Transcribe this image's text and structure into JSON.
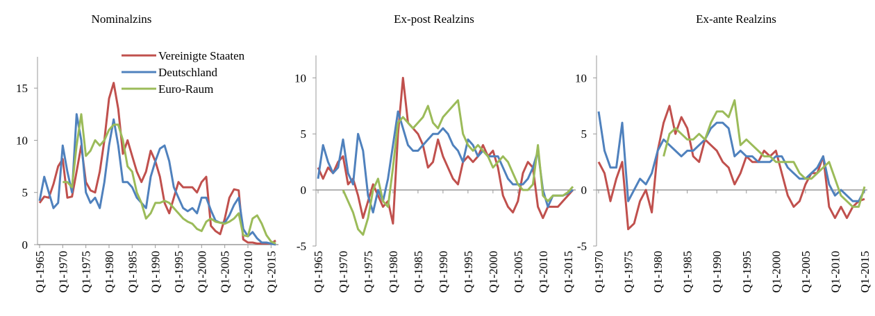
{
  "chart_data": [
    {
      "type": "line",
      "title": "Nominalzins",
      "categories": [
        "Q1-1965",
        null,
        null,
        null,
        null,
        "Q1-1970",
        null,
        null,
        null,
        null,
        "Q1-1975",
        null,
        null,
        null,
        null,
        "Q1-1980",
        null,
        null,
        null,
        null,
        "Q1-1985",
        null,
        null,
        null,
        null,
        "Q1-1990",
        null,
        null,
        null,
        null,
        "Q1-1995",
        null,
        null,
        null,
        null,
        "Q1-2000",
        null,
        null,
        null,
        null,
        "Q1-2005",
        null,
        null,
        null,
        null,
        "Q1-2010",
        null,
        null,
        null,
        null,
        "Q1-2015",
        null
      ],
      "series": [
        {
          "name": "Vereinigte Staaten",
          "color": "#c0504d",
          "values": [
            4.0,
            4.6,
            4.5,
            5.8,
            7.5,
            8.2,
            4.5,
            4.6,
            7.0,
            9.5,
            6.0,
            5.2,
            5.0,
            7.0,
            10.0,
            14.0,
            15.5,
            13.0,
            8.7,
            10.0,
            8.5,
            7.0,
            6.0,
            7.0,
            9.0,
            8.0,
            6.5,
            4.0,
            3.0,
            4.5,
            6.0,
            5.5,
            5.5,
            5.5,
            5.0,
            6.0,
            6.5,
            1.8,
            1.3,
            1.0,
            2.5,
            4.5,
            5.3,
            5.2,
            0.5,
            0.2,
            0.2,
            0.1,
            0.1,
            0.1,
            0.1,
            0.4
          ]
        },
        {
          "name": "Deutschland",
          "color": "#4f81bd",
          "values": [
            4.2,
            6.5,
            5.0,
            3.5,
            4.0,
            9.5,
            7.0,
            5.0,
            12.5,
            10.0,
            5.0,
            4.0,
            4.5,
            3.5,
            6.0,
            9.5,
            12.0,
            9.5,
            6.0,
            6.0,
            5.5,
            4.5,
            4.0,
            3.5,
            6.5,
            8.0,
            9.2,
            9.5,
            8.0,
            5.5,
            4.5,
            3.5,
            3.2,
            3.5,
            3.0,
            4.5,
            4.5,
            3.3,
            2.3,
            2.1,
            2.1,
            2.8,
            3.8,
            4.5,
            1.5,
            0.8,
            1.2,
            0.6,
            0.2,
            0.2,
            0.1,
            0.0
          ]
        },
        {
          "name": "Euro-Raum",
          "color": "#9bbb59",
          "values": [
            null,
            null,
            null,
            null,
            null,
            6.0,
            6.0,
            5.5,
            9.5,
            12.5,
            8.5,
            9.0,
            10.0,
            9.5,
            10.0,
            11.0,
            11.5,
            11.5,
            10.0,
            7.5,
            7.0,
            5.0,
            4.0,
            2.5,
            3.0,
            4.0,
            4.0,
            4.2,
            4.0,
            3.5,
            3.0,
            2.5,
            2.2,
            2.0,
            1.5,
            1.3,
            2.2,
            2.5,
            2.2,
            2.1,
            2.0,
            2.2,
            2.5,
            3.0,
            0.9,
            0.8,
            2.5,
            2.8,
            2.0,
            0.9,
            0.3,
            0.1
          ]
        }
      ],
      "ylim": [
        0,
        18
      ],
      "yticks": [
        0,
        5,
        10,
        15
      ],
      "legend": "upper right"
    },
    {
      "type": "line",
      "title": "Ex-post Realzins",
      "categories": [
        "Q1-1965",
        null,
        null,
        null,
        null,
        "Q1-1970",
        null,
        null,
        null,
        null,
        "Q1-1975",
        null,
        null,
        null,
        null,
        "Q1-1980",
        null,
        null,
        null,
        null,
        "Q1-1985",
        null,
        null,
        null,
        null,
        "Q1-1990",
        null,
        null,
        null,
        null,
        "Q1-1995",
        null,
        null,
        null,
        null,
        "Q1-2000",
        null,
        null,
        null,
        null,
        "Q1-2005",
        null,
        null,
        null,
        null,
        "Q1-2010",
        null,
        null,
        null,
        null,
        "Q1-2015",
        null
      ],
      "series": [
        {
          "name": "Vereinigte Staaten",
          "color": "#c0504d",
          "values": [
            2.0,
            1.0,
            2.0,
            1.5,
            2.5,
            3.0,
            0.5,
            1.0,
            -0.5,
            -2.5,
            -1.0,
            0.5,
            -0.5,
            -1.5,
            -1.0,
            -3.0,
            5.0,
            10.0,
            6.0,
            5.5,
            5.0,
            4.0,
            2.0,
            2.5,
            4.5,
            3.0,
            2.0,
            1.0,
            0.5,
            2.5,
            3.0,
            2.5,
            3.0,
            4.0,
            3.0,
            3.5,
            2.0,
            -0.5,
            -1.5,
            -2.0,
            -1.0,
            1.5,
            2.5,
            2.0,
            -1.5,
            -2.5,
            -1.5,
            -1.5,
            -1.5,
            -1.0,
            -0.5,
            0.0
          ]
        },
        {
          "name": "Deutschland",
          "color": "#4f81bd",
          "values": [
            1.0,
            4.0,
            2.5,
            1.5,
            2.0,
            4.5,
            1.5,
            0.5,
            5.0,
            3.5,
            -0.5,
            -2.0,
            0.0,
            -1.0,
            1.0,
            4.0,
            7.0,
            5.5,
            4.0,
            3.5,
            3.5,
            4.0,
            4.5,
            5.0,
            5.0,
            5.5,
            5.0,
            4.0,
            3.5,
            2.5,
            4.5,
            4.0,
            3.0,
            3.5,
            3.0,
            3.0,
            3.0,
            2.0,
            1.0,
            0.5,
            0.5,
            0.5,
            1.0,
            2.0,
            3.5,
            0.0,
            -1.5,
            -0.5,
            -0.5,
            -0.5,
            -0.3,
            0.0
          ]
        },
        {
          "name": "Euro-Raum",
          "color": "#9bbb59",
          "values": [
            null,
            null,
            null,
            null,
            null,
            0.0,
            -1.0,
            -2.0,
            -3.5,
            -4.0,
            -2.5,
            0.0,
            1.0,
            -1.0,
            -1.5,
            2.0,
            6.0,
            6.5,
            6.0,
            5.5,
            6.0,
            6.5,
            7.5,
            6.0,
            5.5,
            6.5,
            7.0,
            7.5,
            8.0,
            5.0,
            4.0,
            3.5,
            4.0,
            3.5,
            3.0,
            2.0,
            2.5,
            3.0,
            2.5,
            1.5,
            0.5,
            0.0,
            0.0,
            0.5,
            4.0,
            -0.5,
            -1.0,
            -0.5,
            -0.5,
            -0.5,
            -0.2,
            0.3
          ]
        }
      ],
      "ylim": [
        -5,
        12
      ],
      "yticks": [
        -5,
        0,
        5,
        10
      ]
    },
    {
      "type": "line",
      "title": "Ex-ante Realzins",
      "categories": [
        "Q1-1970",
        null,
        null,
        null,
        null,
        "Q1-1975",
        null,
        null,
        null,
        null,
        "Q1-1980",
        null,
        null,
        null,
        null,
        "Q1-1985",
        null,
        null,
        null,
        null,
        "Q1-1990",
        null,
        null,
        null,
        null,
        "Q1-1995",
        null,
        null,
        null,
        null,
        "Q1-2000",
        null,
        null,
        null,
        null,
        "Q1-2005",
        null,
        null,
        null,
        null,
        "Q1-2010",
        null,
        null,
        null,
        null,
        "Q1-2015"
      ],
      "series": [
        {
          "name": "Vereinigte Staaten",
          "color": "#c0504d",
          "values": [
            2.5,
            1.5,
            -1.0,
            1.0,
            2.5,
            -3.5,
            -3.0,
            -1.0,
            0.0,
            -2.0,
            3.5,
            6.0,
            7.5,
            5.0,
            6.5,
            5.5,
            3.0,
            2.5,
            4.5,
            4.0,
            3.5,
            2.5,
            2.0,
            0.5,
            1.5,
            3.0,
            2.5,
            2.5,
            3.5,
            3.0,
            3.5,
            1.5,
            -0.5,
            -1.5,
            -1.0,
            0.5,
            1.5,
            1.5,
            3.0,
            -1.5,
            -2.5,
            -1.5,
            -2.5,
            -1.5,
            -1.0,
            -0.8
          ]
        },
        {
          "name": "Deutschland",
          "color": "#4f81bd",
          "values": [
            7.0,
            3.5,
            2.0,
            2.0,
            6.0,
            -1.0,
            0.0,
            1.0,
            0.5,
            1.5,
            3.5,
            4.5,
            4.0,
            3.5,
            3.0,
            3.5,
            3.5,
            4.0,
            4.5,
            5.5,
            6.0,
            6.0,
            5.5,
            3.0,
            3.5,
            3.0,
            3.0,
            2.5,
            2.5,
            2.5,
            3.0,
            3.0,
            2.0,
            1.5,
            1.0,
            1.0,
            1.5,
            2.0,
            3.0,
            0.5,
            -0.5,
            0.0,
            -0.5,
            -1.0,
            -1.0,
            0.0
          ]
        },
        {
          "name": "Euro-Raum",
          "color": "#9bbb59",
          "values": [
            null,
            null,
            null,
            null,
            null,
            null,
            null,
            null,
            null,
            null,
            null,
            3.0,
            5.0,
            5.5,
            5.0,
            4.5,
            4.5,
            5.0,
            4.5,
            6.0,
            7.0,
            7.0,
            6.5,
            8.0,
            4.0,
            4.5,
            4.0,
            3.5,
            3.0,
            3.0,
            2.5,
            2.5,
            2.5,
            2.5,
            1.5,
            1.0,
            1.0,
            1.5,
            2.0,
            2.5,
            1.0,
            -0.5,
            -1.0,
            -1.5,
            -1.5,
            0.3
          ]
        }
      ],
      "ylim": [
        -5,
        12
      ],
      "yticks": [
        -5,
        0,
        5,
        10
      ]
    }
  ]
}
